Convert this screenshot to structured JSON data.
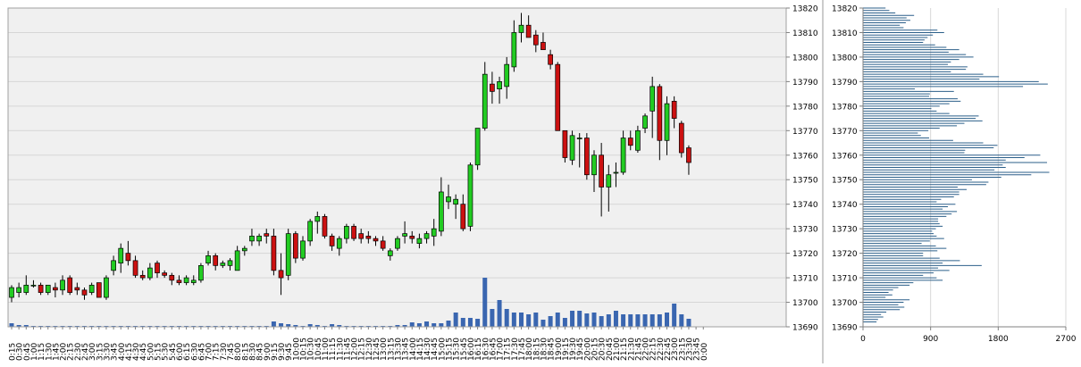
{
  "chart_data": [
    {
      "type": "candlestick",
      "title": "",
      "xlabel": "",
      "ylabel": "",
      "ylim": [
        13690,
        13820
      ],
      "y_ticks": [
        "13820",
        "13810",
        "13800",
        "13790",
        "13780",
        "13770",
        "13760",
        "13750",
        "13740",
        "13730",
        "13720",
        "13710",
        "13700",
        "13690"
      ],
      "x_tick_labels": [
        "0:15",
        "0:30",
        "0:45",
        "1:00",
        "1:15",
        "1:30",
        "1:45",
        "2:00",
        "2:15",
        "2:30",
        "2:45",
        "3:00",
        "3:15",
        "3:30",
        "3:45",
        "4:00",
        "4:15",
        "4:30",
        "4:45",
        "5:00",
        "5:15",
        "5:30",
        "5:45",
        "6:00",
        "6:15",
        "6:30",
        "6:45",
        "7:00",
        "7:15",
        "7:30",
        "7:45",
        "8:00",
        "8:15",
        "8:30",
        "8:45",
        "9:00",
        "9:15",
        "9:30",
        "9:45",
        "10:00",
        "10:15",
        "10:30",
        "10:45",
        "11:00",
        "11:15",
        "11:30",
        "11:45",
        "12:00",
        "12:15",
        "12:30",
        "12:45",
        "13:00",
        "13:15",
        "13:30",
        "13:45",
        "14:00",
        "14:15",
        "14:30",
        "14:45",
        "15:00",
        "15:15",
        "15:30",
        "15:45",
        "16:00",
        "16:15",
        "16:30",
        "16:45",
        "17:00",
        "17:15",
        "17:30",
        "17:45",
        "18:00",
        "18:15",
        "18:30",
        "18:45",
        "19:00",
        "19:15",
        "19:30",
        "19:45",
        "20:00",
        "20:15",
        "20:30",
        "20:45",
        "21:00",
        "21:15",
        "21:30",
        "21:45",
        "22:00",
        "22:15",
        "22:30",
        "22:45",
        "23:00",
        "23:15",
        "23:30",
        "23:45",
        "0:00"
      ],
      "up_color": "#22cc22",
      "down_color": "#cc1111",
      "background": "#f0f0f0",
      "grid": true,
      "candles": [
        {
          "t": "0:15",
          "o": 13702,
          "h": 13707,
          "l": 13700,
          "c": 13706
        },
        {
          "t": "0:30",
          "o": 13704,
          "h": 13708,
          "l": 13702,
          "c": 13706
        },
        {
          "t": "0:45",
          "o": 13704,
          "h": 13711,
          "l": 13703,
          "c": 13707
        },
        {
          "t": "1:00",
          "o": 13707,
          "h": 13709,
          "l": 13706,
          "c": 13707
        },
        {
          "t": "1:15",
          "o": 13707,
          "h": 13708,
          "l": 13703,
          "c": 13704
        },
        {
          "t": "1:30",
          "o": 13704,
          "h": 13707,
          "l": 13703,
          "c": 13707
        },
        {
          "t": "1:45",
          "o": 13706,
          "h": 13708,
          "l": 13702,
          "c": 13705
        },
        {
          "t": "2:00",
          "o": 13705,
          "h": 13711,
          "l": 13703,
          "c": 13709
        },
        {
          "t": "2:15",
          "o": 13710,
          "h": 13711,
          "l": 13703,
          "c": 13704
        },
        {
          "t": "2:30",
          "o": 13706,
          "h": 13708,
          "l": 13703,
          "c": 13705
        },
        {
          "t": "2:45",
          "o": 13705,
          "h": 13706,
          "l": 13701,
          "c": 13703
        },
        {
          "t": "3:00",
          "o": 13704,
          "h": 13708,
          "l": 13703,
          "c": 13707
        },
        {
          "t": "3:15",
          "o": 13708,
          "h": 13708,
          "l": 13702,
          "c": 13702
        },
        {
          "t": "3:30",
          "o": 13702,
          "h": 13711,
          "l": 13701,
          "c": 13710
        },
        {
          "t": "3:45",
          "o": 13713,
          "h": 13719,
          "l": 13711,
          "c": 13717
        },
        {
          "t": "4:00",
          "o": 13716,
          "h": 13724,
          "l": 13712,
          "c": 13722
        },
        {
          "t": "4:15",
          "o": 13720,
          "h": 13725,
          "l": 13715,
          "c": 13717
        },
        {
          "t": "4:30",
          "o": 13717,
          "h": 13719,
          "l": 13710,
          "c": 13711
        },
        {
          "t": "4:45",
          "o": 13711,
          "h": 13713,
          "l": 13709,
          "c": 13710
        },
        {
          "t": "5:00",
          "o": 13710,
          "h": 13716,
          "l": 13709,
          "c": 13714
        },
        {
          "t": "5:15",
          "o": 13716,
          "h": 13717,
          "l": 13710,
          "c": 13712
        },
        {
          "t": "5:30",
          "o": 13712,
          "h": 13713,
          "l": 13710,
          "c": 13711
        },
        {
          "t": "5:45",
          "o": 13711,
          "h": 13712,
          "l": 13707,
          "c": 13709
        },
        {
          "t": "6:00",
          "o": 13709,
          "h": 13711,
          "l": 13707,
          "c": 13708
        },
        {
          "t": "6:15",
          "o": 13708,
          "h": 13711,
          "l": 13707,
          "c": 13710
        },
        {
          "t": "6:30",
          "o": 13708,
          "h": 13711,
          "l": 13707,
          "c": 13709
        },
        {
          "t": "6:45",
          "o": 13709,
          "h": 13716,
          "l": 13708,
          "c": 13715
        },
        {
          "t": "7:00",
          "o": 13716,
          "h": 13721,
          "l": 13715,
          "c": 13719
        },
        {
          "t": "7:15",
          "o": 13719,
          "h": 13720,
          "l": 13713,
          "c": 13715
        },
        {
          "t": "7:30",
          "o": 13715,
          "h": 13717,
          "l": 13714,
          "c": 13716
        },
        {
          "t": "7:45",
          "o": 13715,
          "h": 13718,
          "l": 13713,
          "c": 13717
        },
        {
          "t": "8:00",
          "o": 13713,
          "h": 13723,
          "l": 13713,
          "c": 13721
        },
        {
          "t": "8:15",
          "o": 13721,
          "h": 13723,
          "l": 13719,
          "c": 13722
        },
        {
          "t": "8:30",
          "o": 13725,
          "h": 13730,
          "l": 13723,
          "c": 13727
        },
        {
          "t": "8:45",
          "o": 13725,
          "h": 13728,
          "l": 13723,
          "c": 13727
        },
        {
          "t": "9:00",
          "o": 13728,
          "h": 13730,
          "l": 13724,
          "c": 13727
        },
        {
          "t": "9:15",
          "o": 13727,
          "h": 13730,
          "l": 13711,
          "c": 13713
        },
        {
          "t": "9:30",
          "o": 13713,
          "h": 13720,
          "l": 13703,
          "c": 13710
        },
        {
          "t": "9:45",
          "o": 13711,
          "h": 13730,
          "l": 13709,
          "c": 13728
        },
        {
          "t": "10:00",
          "o": 13728,
          "h": 13729,
          "l": 13716,
          "c": 13718
        },
        {
          "t": "10:15",
          "o": 13718,
          "h": 13727,
          "l": 13717,
          "c": 13725
        },
        {
          "t": "10:30",
          "o": 13725,
          "h": 13734,
          "l": 13723,
          "c": 13733
        },
        {
          "t": "10:45",
          "o": 13733,
          "h": 13737,
          "l": 13728,
          "c": 13735
        },
        {
          "t": "11:00",
          "o": 13735,
          "h": 13736,
          "l": 13726,
          "c": 13727
        },
        {
          "t": "11:15",
          "o": 13727,
          "h": 13728,
          "l": 13721,
          "c": 13723
        },
        {
          "t": "11:30",
          "o": 13722,
          "h": 13727,
          "l": 13719,
          "c": 13726
        },
        {
          "t": "11:45",
          "o": 13726,
          "h": 13732,
          "l": 13724,
          "c": 13731
        },
        {
          "t": "12:00",
          "o": 13731,
          "h": 13732,
          "l": 13725,
          "c": 13726
        },
        {
          "t": "12:15",
          "o": 13728,
          "h": 13730,
          "l": 13724,
          "c": 13726
        },
        {
          "t": "12:30",
          "o": 13727,
          "h": 13729,
          "l": 13724,
          "c": 13726
        },
        {
          "t": "12:45",
          "o": 13726,
          "h": 13727,
          "l": 13723,
          "c": 13725
        },
        {
          "t": "13:00",
          "o": 13725,
          "h": 13727,
          "l": 13721,
          "c": 13722
        },
        {
          "t": "13:15",
          "o": 13719,
          "h": 13722,
          "l": 13717,
          "c": 13721
        },
        {
          "t": "13:30",
          "o": 13722,
          "h": 13727,
          "l": 13721,
          "c": 13726
        },
        {
          "t": "13:45",
          "o": 13727,
          "h": 13733,
          "l": 13724,
          "c": 13728
        },
        {
          "t": "14:00",
          "o": 13727,
          "h": 13729,
          "l": 13724,
          "c": 13726
        },
        {
          "t": "14:15",
          "o": 13724,
          "h": 13728,
          "l": 13722,
          "c": 13726
        },
        {
          "t": "14:30",
          "o": 13726,
          "h": 13729,
          "l": 13724,
          "c": 13728
        },
        {
          "t": "14:45",
          "o": 13727,
          "h": 13734,
          "l": 13723,
          "c": 13730
        },
        {
          "t": "15:00",
          "o": 13729,
          "h": 13751,
          "l": 13727,
          "c": 13745
        },
        {
          "t": "15:15",
          "o": 13741,
          "h": 13748,
          "l": 13738,
          "c": 13743
        },
        {
          "t": "15:30",
          "o": 13740,
          "h": 13744,
          "l": 13734,
          "c": 13742
        },
        {
          "t": "15:45",
          "o": 13740,
          "h": 13744,
          "l": 13729,
          "c": 13730
        },
        {
          "t": "16:00",
          "o": 13731,
          "h": 13757,
          "l": 13729,
          "c": 13756
        },
        {
          "t": "16:15",
          "o": 13756,
          "h": 13771,
          "l": 13754,
          "c": 13771
        },
        {
          "t": "16:30",
          "o": 13771,
          "h": 13798,
          "l": 13770,
          "c": 13793
        },
        {
          "t": "16:45",
          "o": 13789,
          "h": 13794,
          "l": 13781,
          "c": 13786
        },
        {
          "t": "17:00",
          "o": 13787,
          "h": 13792,
          "l": 13781,
          "c": 13790
        },
        {
          "t": "17:15",
          "o": 13788,
          "h": 13800,
          "l": 13783,
          "c": 13797
        },
        {
          "t": "17:30",
          "o": 13796,
          "h": 13815,
          "l": 13794,
          "c": 13810
        },
        {
          "t": "17:45",
          "o": 13810,
          "h": 13818,
          "l": 13806,
          "c": 13813
        },
        {
          "t": "18:00",
          "o": 13813,
          "h": 13817,
          "l": 13808,
          "c": 13808
        },
        {
          "t": "18:15",
          "o": 13809,
          "h": 13811,
          "l": 13802,
          "c": 13805
        },
        {
          "t": "18:30",
          "o": 13806,
          "h": 13810,
          "l": 13803,
          "c": 13803
        },
        {
          "t": "18:45",
          "o": 13801,
          "h": 13803,
          "l": 13795,
          "c": 13797
        },
        {
          "t": "19:00",
          "o": 13797,
          "h": 13798,
          "l": 13771,
          "c": 13770
        },
        {
          "t": "19:15",
          "o": 13770,
          "h": 13770,
          "l": 13757,
          "c": 13759
        },
        {
          "t": "19:30",
          "o": 13758,
          "h": 13770,
          "l": 13756,
          "c": 13768
        },
        {
          "t": "19:45",
          "o": 13767,
          "h": 13769,
          "l": 13755,
          "c": 13767
        },
        {
          "t": "20:00",
          "o": 13767,
          "h": 13769,
          "l": 13750,
          "c": 13752
        },
        {
          "t": "20:15",
          "o": 13752,
          "h": 13762,
          "l": 13745,
          "c": 13760
        },
        {
          "t": "20:30",
          "o": 13760,
          "h": 13765,
          "l": 13735,
          "c": 13747
        },
        {
          "t": "20:45",
          "o": 13747,
          "h": 13756,
          "l": 13737,
          "c": 13752
        },
        {
          "t": "21:00",
          "o": 13753,
          "h": 13757,
          "l": 13747,
          "c": 13753
        },
        {
          "t": "21:15",
          "o": 13753,
          "h": 13770,
          "l": 13752,
          "c": 13767
        },
        {
          "t": "21:30",
          "o": 13767,
          "h": 13770,
          "l": 13762,
          "c": 13764
        },
        {
          "t": "21:45",
          "o": 13762,
          "h": 13772,
          "l": 13761,
          "c": 13770
        },
        {
          "t": "22:00",
          "o": 13771,
          "h": 13777,
          "l": 13769,
          "c": 13776
        },
        {
          "t": "22:15",
          "o": 13778,
          "h": 13792,
          "l": 13767,
          "c": 13788
        },
        {
          "t": "22:30",
          "o": 13788,
          "h": 13789,
          "l": 13758,
          "c": 13766
        },
        {
          "t": "22:45",
          "o": 13766,
          "h": 13784,
          "l": 13760,
          "c": 13781
        },
        {
          "t": "23:00",
          "o": 13782,
          "h": 13784,
          "l": 13771,
          "c": 13775
        },
        {
          "t": "23:15",
          "o": 13773,
          "h": 13774,
          "l": 13759,
          "c": 13761
        },
        {
          "t": "23:30",
          "o": 13763,
          "h": 13764,
          "l": 13752,
          "c": 13757
        }
      ],
      "volume_bars": [
        4,
        2,
        2,
        1,
        1,
        1,
        1,
        1,
        1,
        1,
        1,
        1,
        1,
        1,
        1,
        1,
        1,
        1,
        1,
        1,
        1,
        1,
        1,
        1,
        1,
        1,
        1,
        1,
        1,
        1,
        1,
        1,
        1,
        1,
        1,
        1,
        6,
        4,
        3,
        2,
        1,
        3,
        2,
        1,
        3,
        2,
        1,
        1,
        1,
        1,
        1,
        1,
        1,
        2,
        2,
        5,
        4,
        6,
        4,
        4,
        7,
        16,
        10,
        10,
        9,
        55,
        20,
        30,
        20,
        16,
        16,
        14,
        16,
        8,
        12,
        16,
        10,
        18,
        18,
        15,
        16,
        12,
        14,
        18,
        14,
        14,
        14,
        14,
        14,
        14,
        16,
        26,
        14,
        9
      ]
    },
    {
      "type": "bar",
      "orientation": "horizontal",
      "title": "",
      "xlabel": "",
      "ylabel": "",
      "xlim": [
        0,
        2700
      ],
      "ylim": [
        13690,
        13820
      ],
      "x_ticks": [
        "0",
        "900",
        "1800",
        "2700"
      ],
      "y_ticks": [
        "13820",
        "13810",
        "13800",
        "13790",
        "13780",
        "13770",
        "13760",
        "13750",
        "13740",
        "13730",
        "13720",
        "13710",
        "13700",
        "13690"
      ],
      "bar_color": "#2b5f8a",
      "price_levels_start": 13820,
      "price_levels_step": -1,
      "values": [
        300,
        350,
        430,
        680,
        580,
        630,
        570,
        490,
        540,
        990,
        1080,
        930,
        860,
        820,
        800,
        960,
        1110,
        1280,
        1140,
        1370,
        1470,
        1280,
        1170,
        1130,
        1390,
        1370,
        1170,
        1600,
        1810,
        1550,
        2340,
        2460,
        2130,
        690,
        1210,
        890,
        880,
        1260,
        1300,
        1150,
        1020,
        910,
        980,
        1150,
        1540,
        1500,
        1590,
        1350,
        1250,
        1020,
        870,
        730,
        770,
        880,
        1200,
        1600,
        1790,
        1740,
        1360,
        1350,
        2360,
        2150,
        1900,
        2450,
        1860,
        1900,
        1750,
        2480,
        2240,
        1840,
        1450,
        1670,
        1640,
        1260,
        1380,
        1280,
        1280,
        1210,
        1040,
        980,
        1230,
        1130,
        1060,
        1250,
        1180,
        1110,
        1000,
        1000,
        1020,
        1060,
        970,
        920,
        940,
        980,
        1080,
        890,
        780,
        970,
        1110,
        990,
        800,
        800,
        1020,
        1290,
        1060,
        1580,
        1000,
        1150,
        940,
        800,
        980,
        1060,
        670,
        620,
        470,
        400,
        340,
        390,
        300,
        620,
        540,
        470,
        550,
        490,
        310,
        240,
        270,
        200,
        180
      ]
    }
  ]
}
